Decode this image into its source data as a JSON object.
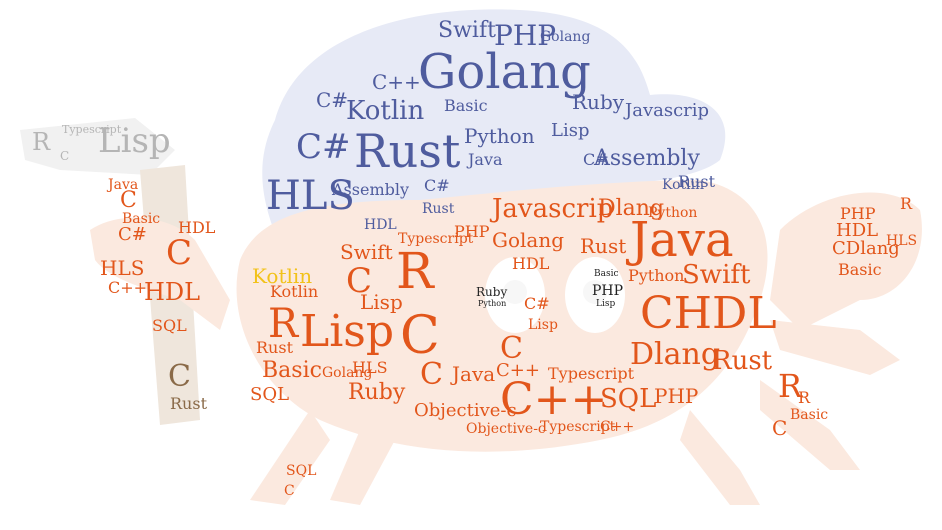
{
  "colors": {
    "body": "#e2561b",
    "bodyDark": "#c44212",
    "hat": "#4f5c9e",
    "hatDark": "#3b4683",
    "handle": "#8a6a48",
    "hammer": "#b3b3b3",
    "kotlin": "#f2c21a",
    "eye": "#222222",
    "shape": "#fbeee6",
    "hatShape": "#e6e9f5",
    "hammerShape": "#f0f0f0"
  },
  "words": {
    "golang": "Golang",
    "rust": "Rust",
    "kotlin": "Kotlin",
    "hls": "HLS",
    "csharp": "C#",
    "php": "PHP",
    "swift": "Swift",
    "python": "Python",
    "basic": "Basic",
    "lisp": "Lisp",
    "ruby": "Ruby",
    "javascript": "Javascrip",
    "assembly": "Assembly",
    "java": "Java",
    "dlang": "Dlang",
    "chdl": "CHDL",
    "cpp": "C++",
    "c": "C",
    "r": "R",
    "sql": "SQL",
    "hdl": "HDL",
    "objc": "Objective-c",
    "typescript": "Typescript",
    "cdlang": "CDlang"
  }
}
